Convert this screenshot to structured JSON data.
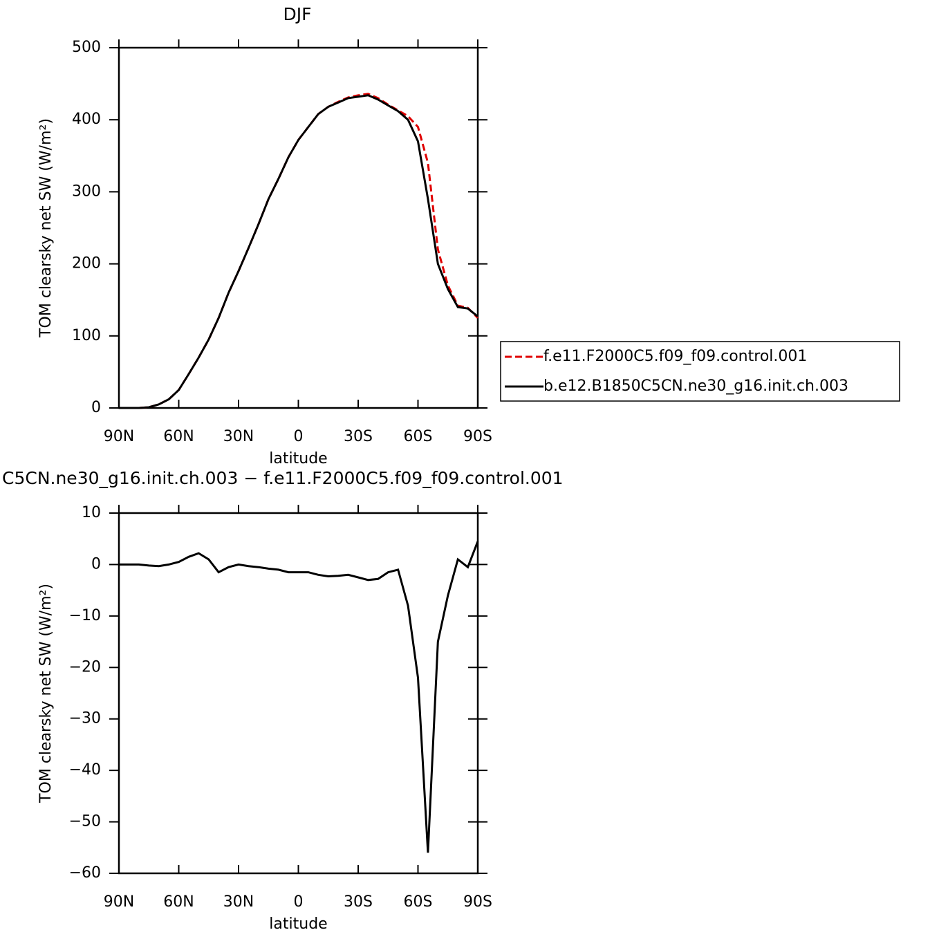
{
  "chart_data": [
    {
      "type": "line",
      "title": "DJF",
      "xlabel": "latitude",
      "ylabel": "TOM clearsky net SW (W/m²)",
      "xlim": [
        90,
        -90
      ],
      "xticks": [
        {
          "value": 90,
          "label": "90N"
        },
        {
          "value": 60,
          "label": "60N"
        },
        {
          "value": 30,
          "label": "30N"
        },
        0,
        {
          "value": -30,
          "label": "30S"
        },
        {
          "value": -60,
          "label": "60S"
        },
        {
          "value": -90,
          "label": "90S"
        }
      ],
      "ylim": [
        0,
        500
      ],
      "yticks": [
        0,
        100,
        200,
        300,
        400,
        500
      ],
      "x": [
        90,
        85,
        80,
        75,
        70,
        65,
        60,
        55,
        50,
        45,
        40,
        35,
        30,
        25,
        20,
        15,
        10,
        5,
        0,
        -5,
        -10,
        -15,
        -20,
        -25,
        -30,
        -35,
        -40,
        -45,
        -50,
        -55,
        -60,
        -65,
        -70,
        -75,
        -80,
        -85,
        -90
      ],
      "legend": "right",
      "series": [
        {
          "name": "f.e11.F2000C5.f09_f09.control.001",
          "color": "#e00000",
          "linestyle": "dashed",
          "values": [
            0,
            0,
            0,
            1,
            5,
            12,
            25,
            47,
            70,
            95,
            125,
            160,
            190,
            222,
            255,
            290,
            318,
            348,
            372,
            390,
            408,
            418,
            425,
            431,
            434,
            436,
            430,
            421,
            413,
            405,
            390,
            340,
            220,
            170,
            142,
            139,
            125
          ]
        },
        {
          "name": "b.e12.B1850C5CN.ne30_g16.init.ch.003",
          "color": "#000000",
          "linestyle": "solid",
          "values": [
            0,
            0,
            0,
            1,
            5,
            12,
            25,
            47,
            70,
            95,
            125,
            160,
            190,
            222,
            255,
            290,
            318,
            348,
            372,
            390,
            408,
            418,
            424,
            430,
            432,
            434,
            428,
            420,
            412,
            400,
            370,
            290,
            200,
            165,
            140,
            138,
            127
          ]
        }
      ]
    },
    {
      "type": "line",
      "title": "C5CN.ne30_g16.init.ch.003 − f.e11.F2000C5.f09_f09.control.001",
      "xlabel": "latitude",
      "ylabel": "TOM clearsky net SW (W/m²)",
      "xlim": [
        90,
        -90
      ],
      "xticks": [
        {
          "value": 90,
          "label": "90N"
        },
        {
          "value": 60,
          "label": "60N"
        },
        {
          "value": 30,
          "label": "30N"
        },
        0,
        {
          "value": -30,
          "label": "30S"
        },
        {
          "value": -60,
          "label": "60S"
        },
        {
          "value": -90,
          "label": "90S"
        }
      ],
      "ylim": [
        -60,
        10
      ],
      "yticks": [
        {
          "value": -60,
          "label": "−60"
        },
        {
          "value": -50,
          "label": "−50"
        },
        {
          "value": -40,
          "label": "−40"
        },
        {
          "value": -30,
          "label": "−30"
        },
        {
          "value": -20,
          "label": "−20"
        },
        {
          "value": -10,
          "label": "−10"
        },
        0,
        10
      ],
      "x": [
        90,
        85,
        80,
        75,
        70,
        65,
        60,
        55,
        50,
        45,
        40,
        35,
        30,
        25,
        20,
        15,
        10,
        5,
        0,
        -5,
        -10,
        -15,
        -20,
        -25,
        -30,
        -35,
        -40,
        -45,
        -50,
        -55,
        -60,
        -65,
        -70,
        -75,
        -80,
        -85,
        -90
      ],
      "series": [
        {
          "color": "#000000",
          "linestyle": "solid",
          "values": [
            0,
            0,
            0,
            -0.2,
            -0.3,
            0,
            0.5,
            1.5,
            2.2,
            1,
            -1.5,
            -0.5,
            0,
            -0.3,
            -0.5,
            -0.8,
            -1,
            -1.5,
            -1.5,
            -1.5,
            -2,
            -2.3,
            -2.2,
            -2,
            -2.5,
            -3,
            -2.8,
            -1.5,
            -1,
            -8,
            -22,
            -56,
            -15,
            -6,
            1,
            -0.5,
            4.5
          ]
        }
      ]
    }
  ]
}
